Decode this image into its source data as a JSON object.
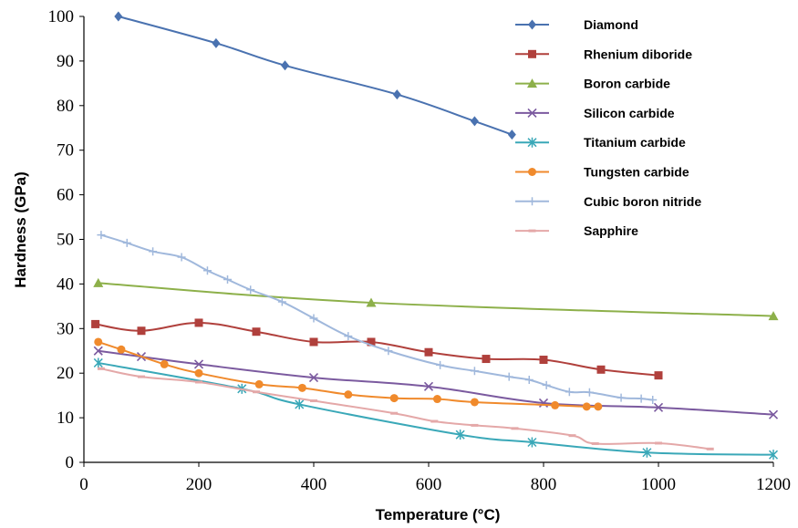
{
  "chart_data": {
    "type": "line",
    "xlabel": "Temperature (°C)",
    "ylabel": "Hardness (GPa)",
    "xlim": [
      0,
      1200
    ],
    "ylim": [
      0,
      100
    ],
    "x_ticks": [
      "0",
      "200",
      "400",
      "600",
      "800",
      "1000",
      "1200"
    ],
    "y_ticks": [
      "0",
      "10",
      "20",
      "30",
      "40",
      "50",
      "60",
      "70",
      "80",
      "90",
      "100"
    ],
    "grid": false,
    "legend": "top-right",
    "series": [
      {
        "name": "Diamond",
        "color": "#4a72b0",
        "marker": "diamond",
        "x": [
          60,
          230,
          350,
          545,
          680,
          745
        ],
        "y": [
          100,
          94,
          89,
          82.5,
          76.5,
          73.5
        ]
      },
      {
        "name": "Rhenium diboride",
        "color": "#b0403c",
        "marker": "square",
        "x": [
          20,
          100,
          200,
          300,
          400,
          500,
          600,
          700,
          800,
          900,
          1000
        ],
        "y": [
          31,
          29.5,
          31.3,
          29.3,
          27,
          27,
          24.7,
          23.2,
          23,
          20.8,
          19.5
        ]
      },
      {
        "name": "Boron carbide",
        "color": "#8db04a",
        "marker": "triangle",
        "x": [
          25,
          500,
          1200
        ],
        "y": [
          40.2,
          35.8,
          32.8
        ]
      },
      {
        "name": "Silicon carbide",
        "color": "#7b5a9f",
        "marker": "x",
        "x": [
          25,
          100,
          200,
          400,
          600,
          800,
          1000,
          1200
        ],
        "y": [
          25,
          23.7,
          22,
          19,
          17,
          13.3,
          12.3,
          10.7
        ]
      },
      {
        "name": "Titanium carbide",
        "color": "#3aa8b8",
        "marker": "star",
        "x": [
          25,
          275,
          375,
          655,
          780,
          980,
          1200
        ],
        "y": [
          22.3,
          16.5,
          13,
          6.2,
          4.5,
          2.2,
          1.7
        ]
      },
      {
        "name": "Tungsten carbide",
        "color": "#f08a2c",
        "marker": "circle",
        "x": [
          25,
          65,
          140,
          200,
          305,
          380,
          460,
          540,
          615,
          680,
          820,
          875,
          895
        ],
        "y": [
          27,
          25.3,
          22,
          20,
          17.5,
          16.7,
          15.2,
          14.4,
          14.2,
          13.5,
          12.8,
          12.5,
          12.5
        ]
      },
      {
        "name": "Cubic boron nitride",
        "color": "#a0b8dc",
        "marker": "plus",
        "x": [
          30,
          75,
          120,
          170,
          215,
          250,
          290,
          345,
          400,
          460,
          530,
          620,
          680,
          740,
          775,
          805,
          845,
          880,
          935,
          970,
          990
        ],
        "y": [
          51,
          49.2,
          47.3,
          46,
          43,
          41,
          38.7,
          36,
          32.3,
          28.3,
          25,
          21.8,
          20.5,
          19.2,
          18.5,
          17.3,
          15.8,
          15.7,
          14.5,
          14.3,
          14
        ]
      },
      {
        "name": "Sapphire",
        "color": "#e4a8a8",
        "marker": "dash",
        "x": [
          30,
          100,
          200,
          300,
          400,
          540,
          610,
          680,
          750,
          850,
          890,
          1000,
          1090
        ],
        "y": [
          21,
          19.2,
          18,
          15.8,
          13.8,
          11,
          9.2,
          8.3,
          7.6,
          6,
          4.2,
          4.3,
          3
        ]
      }
    ]
  }
}
